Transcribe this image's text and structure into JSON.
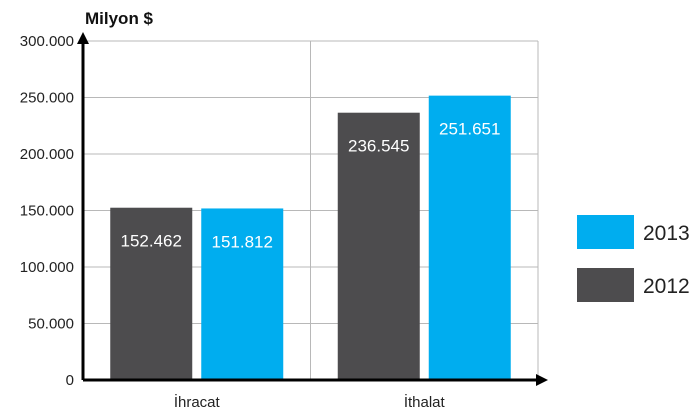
{
  "chart_data": {
    "type": "bar",
    "title": "",
    "xlabel": "",
    "ylabel": "Milyon $",
    "ylim": [
      0,
      300000
    ],
    "yticks": [
      0,
      50000,
      100000,
      150000,
      200000,
      250000,
      300000
    ],
    "ytick_labels": [
      "0",
      "50.000",
      "100.000",
      "150.000",
      "200.000",
      "250.000",
      "300.000"
    ],
    "categories": [
      "İhracat",
      "İthalat"
    ],
    "series": [
      {
        "name": "2012",
        "values": [
          152462,
          236545
        ],
        "labels": [
          "152.462",
          "236.545"
        ],
        "color": "#4d4c4e"
      },
      {
        "name": "2013",
        "values": [
          151812,
          251651
        ],
        "labels": [
          "151.812",
          "251.651"
        ],
        "color": "#00adef"
      }
    ],
    "grid": true,
    "legend": {
      "placement": "right",
      "entries": [
        {
          "name": "2013",
          "color": "#00adef"
        },
        {
          "name": "2012",
          "color": "#4d4c4e"
        }
      ]
    }
  }
}
